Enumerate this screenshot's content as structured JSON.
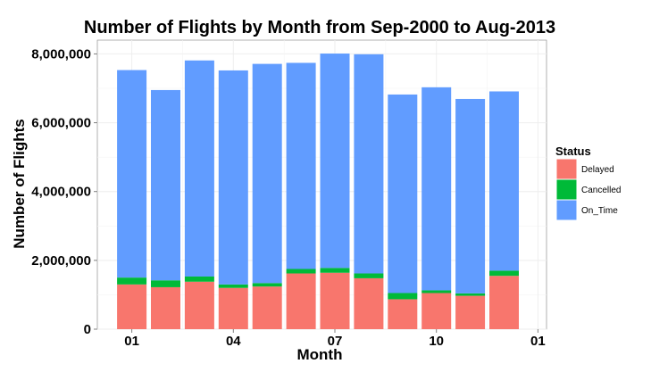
{
  "chart_data": {
    "type": "bar",
    "stacked": true,
    "title": "Number of Flights by Month from Sep-2000 to Aug-2013",
    "xlabel": "Month",
    "ylabel": "Number of Flights",
    "categories": [
      "01",
      "02",
      "03",
      "04",
      "05",
      "06",
      "07",
      "08",
      "09",
      "10",
      "11",
      "12"
    ],
    "x_tick_labels": [
      "01",
      "04",
      "07",
      "10",
      "01"
    ],
    "y_tick_labels": [
      "0",
      "2,000,000",
      "4,000,000",
      "6,000,000",
      "8,000,000"
    ],
    "y_ticks": [
      0,
      2000000,
      4000000,
      6000000,
      8000000
    ],
    "ylim": [
      0,
      8400000
    ],
    "grid": true,
    "legend_position": "right",
    "legend_title": "Status",
    "series": [
      {
        "name": "Delayed",
        "color": "#F8766D",
        "values": [
          1300000,
          1220000,
          1380000,
          1200000,
          1240000,
          1620000,
          1640000,
          1480000,
          870000,
          1050000,
          970000,
          1550000
        ]
      },
      {
        "name": "Cancelled",
        "color": "#00BA38",
        "values": [
          200000,
          200000,
          150000,
          100000,
          100000,
          130000,
          140000,
          140000,
          180000,
          80000,
          70000,
          150000
        ]
      },
      {
        "name": "On_Time",
        "color": "#619CFF",
        "values": [
          6030000,
          5530000,
          6280000,
          6220000,
          6370000,
          5990000,
          6230000,
          6370000,
          5770000,
          5900000,
          5650000,
          5210000
        ]
      }
    ]
  }
}
